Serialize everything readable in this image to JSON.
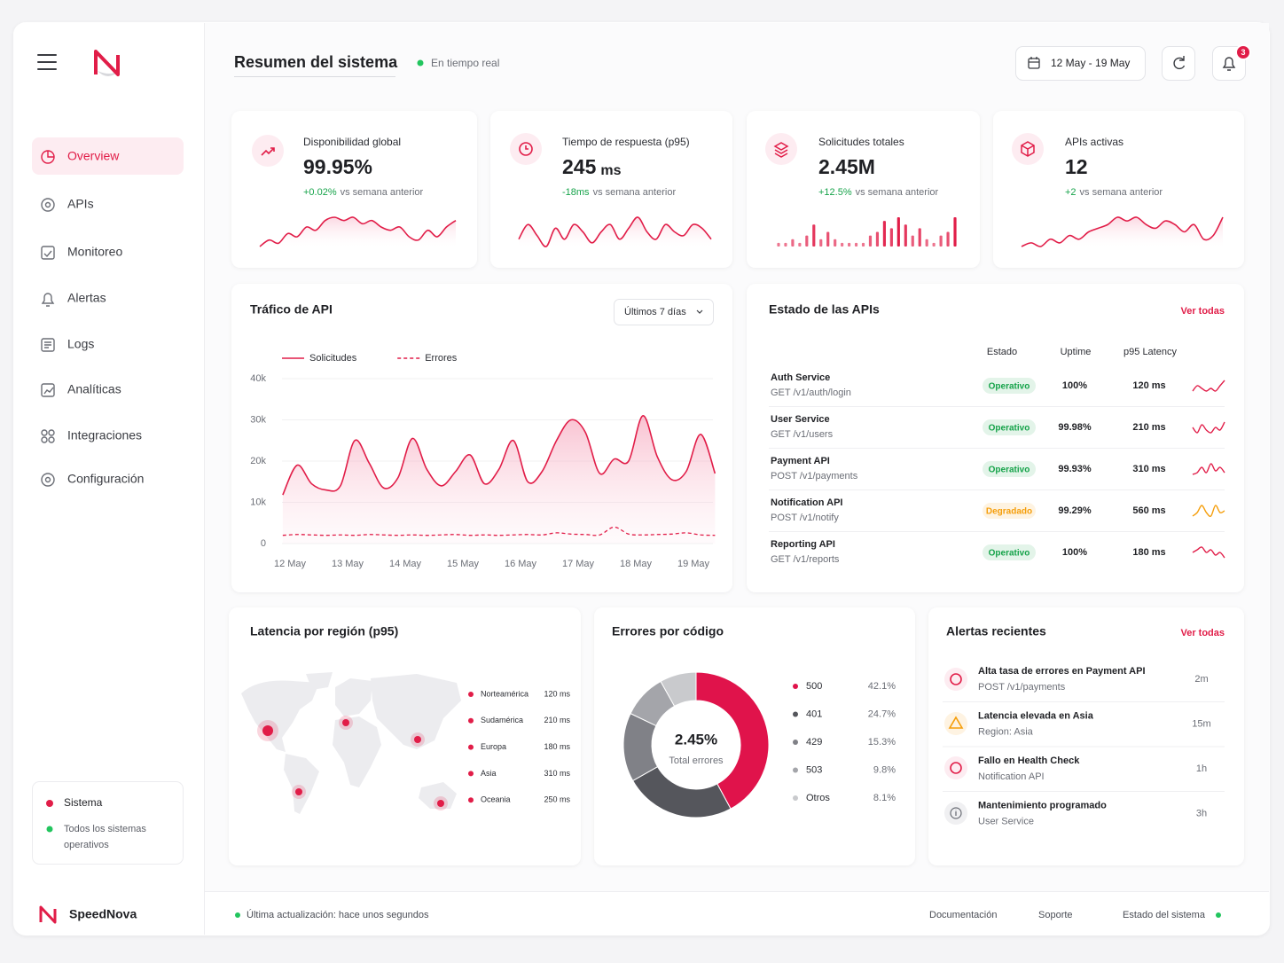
{
  "sidebar": {
    "nav": [
      "Overview",
      "APIs",
      "Monitoreo",
      "Alertas",
      "Logs",
      "Analíticas",
      "Integraciones",
      "Configuración"
    ],
    "status": {
      "title": "Sistema",
      "text": "Todos los sistemas operativos"
    }
  },
  "header": {
    "title": "Resumen del sistema",
    "live": "En tiempo real",
    "date_range": "12 May - 19 May",
    "notifications": 3
  },
  "kpis": [
    {
      "label": "Disponibilidad global",
      "value": "99.95%",
      "change": "+0.02%",
      "note": "vs semana anterior",
      "trend_type": "line",
      "trend": [
        2,
        3,
        2.5,
        4,
        3.5,
        5,
        4.5,
        6,
        6.5,
        6,
        6.5,
        5.5,
        6,
        5,
        4.5,
        5,
        3.5,
        3,
        4.5,
        3.5,
        5,
        6
      ]
    },
    {
      "label": "Tiempo de respuesta (p95)",
      "value": "245",
      "unit": "ms",
      "change": "-18ms",
      "note": "vs semana anterior",
      "trend_type": "line",
      "trend": [
        4,
        6,
        4.5,
        3,
        5.5,
        4,
        6,
        5,
        3.5,
        5,
        6,
        4,
        5.5,
        7,
        5,
        4,
        6,
        5,
        4.5,
        6,
        5.5,
        4
      ]
    },
    {
      "label": "Solicitudes totales",
      "value": "2.45M",
      "change": "+12.5%",
      "note": "vs semana anterior",
      "trend_type": "bar",
      "trend": [
        1,
        1,
        2,
        1,
        3,
        6,
        2,
        4,
        2,
        1,
        1,
        1,
        1,
        3,
        4,
        7,
        5,
        8,
        6,
        3,
        5,
        2,
        1,
        3,
        4,
        8
      ]
    },
    {
      "label": "APIs activas",
      "value": "12",
      "change": "+2",
      "note": "vs semana anterior",
      "trend_type": "line",
      "trend": [
        2,
        2.5,
        2,
        3,
        2.5,
        3.5,
        3,
        4,
        4.5,
        5,
        6,
        5.5,
        6,
        5,
        4.5,
        5.5,
        5,
        4,
        5,
        3,
        3.5,
        6
      ]
    }
  ],
  "traffic_controls": {
    "range": "Últimos 7 días"
  },
  "chart_data": [
    {
      "type": "line",
      "title": "Tráfico de API",
      "x": [
        11.875,
        12.125,
        12.375,
        12.625,
        12.875,
        13.125,
        13.375,
        13.625,
        13.875,
        14.125,
        14.375,
        14.625,
        14.875,
        15.125,
        15.375,
        15.625,
        15.875,
        16.125,
        16.375,
        16.625,
        16.875,
        17.125,
        17.375,
        17.625,
        17.875,
        18.125,
        18.375,
        18.625,
        18.875,
        19.125,
        19.375
      ],
      "xlim": [
        11.75,
        19.5
      ],
      "xticks": [
        {
          "value": 12,
          "label": "12 May"
        },
        {
          "value": 13,
          "label": "13 May"
        },
        {
          "value": 14,
          "label": "14 May"
        },
        {
          "value": 15,
          "label": "15 May"
        },
        {
          "value": 16,
          "label": "16 May"
        },
        {
          "value": 17,
          "label": "17 May"
        },
        {
          "value": 18,
          "label": "18 May"
        },
        {
          "value": 19,
          "label": "19 May"
        }
      ],
      "ylim": [
        0,
        40000
      ],
      "yticks": [
        0,
        {
          "value": 10000,
          "label": "10k"
        },
        {
          "value": 20000,
          "label": "20k"
        },
        {
          "value": 30000,
          "label": "30k"
        },
        {
          "value": 40000,
          "label": "40k"
        }
      ],
      "grid": true,
      "series": [
        {
          "name": "Solicitudes",
          "color": "#e11d48",
          "dashed": false,
          "area": true,
          "values": [
            11800,
            19000,
            14500,
            13000,
            14000,
            25000,
            19500,
            13500,
            16000,
            25500,
            18000,
            14000,
            17500,
            21500,
            14500,
            18000,
            25000,
            15000,
            17500,
            25000,
            30000,
            27000,
            17000,
            20500,
            20000,
            31000,
            21000,
            15500,
            17500,
            26500,
            17000
          ]
        },
        {
          "name": "Errores",
          "color": "#e11d48",
          "dashed": true,
          "area": false,
          "values": [
            2000,
            2200,
            2100,
            2000,
            2100,
            2000,
            2200,
            2100,
            2000,
            2100,
            2000,
            2100,
            2200,
            2000,
            2100,
            2000,
            2100,
            2200,
            2100,
            2600,
            2300,
            2200,
            2100,
            4000,
            2300,
            2100,
            2200,
            2300,
            2600,
            2100,
            2000
          ]
        }
      ]
    },
    {
      "type": "pie",
      "title": "Errores por código",
      "center_value": "2.45%",
      "center_label": "Total errores",
      "categories": [
        "500",
        "401",
        "429",
        "503",
        "Otros"
      ],
      "values": [
        42.1,
        24.7,
        15.3,
        9.8,
        8.1
      ],
      "value_labels": [
        "42.1%",
        "24.7%",
        "15.3%",
        "9.8%",
        "8.1%"
      ],
      "colors": [
        "#e0134b",
        "#55565c",
        "#808187",
        "#a4a5aa",
        "#c9cacd"
      ]
    }
  ],
  "api_status": {
    "title": "Estado de las APIs",
    "link": "Ver todas",
    "columns": [
      "Estado",
      "Uptime",
      "p95 Latency"
    ],
    "rows": [
      {
        "name": "Auth Service",
        "endpoint": "GET /v1/auth/login",
        "status": "Operativo",
        "color": "#16a34a",
        "trend_color": "#e11d48",
        "uptime": "100%",
        "latency": "120 ms",
        "trend": [
          3,
          4,
          3.5,
          3,
          3.5,
          3,
          4,
          5
        ]
      },
      {
        "name": "User Service",
        "endpoint": "GET /v1/users",
        "status": "Operativo",
        "color": "#16a34a",
        "trend_color": "#e11d48",
        "uptime": "99.98%",
        "latency": "210 ms",
        "trend": [
          4,
          3,
          4.5,
          3.5,
          3,
          4,
          3.5,
          5
        ]
      },
      {
        "name": "Payment API",
        "endpoint": "POST /v1/payments",
        "status": "Operativo",
        "color": "#16a34a",
        "trend_color": "#e11d48",
        "uptime": "99.93%",
        "latency": "310 ms",
        "trend": [
          3,
          3.5,
          5,
          3.5,
          6,
          4,
          5,
          3.5
        ]
      },
      {
        "name": "Notification API",
        "endpoint": "POST /v1/notify",
        "status": "Degradado",
        "color": "#f59e0b",
        "trend_color": "#f59e0b",
        "uptime": "99.29%",
        "latency": "560 ms",
        "trend": [
          3,
          4,
          6,
          4,
          3,
          6,
          4,
          4.5
        ]
      },
      {
        "name": "Reporting API",
        "endpoint": "GET /v1/reports",
        "status": "Operativo",
        "color": "#16a34a",
        "trend_color": "#e11d48",
        "uptime": "100%",
        "latency": "180 ms",
        "trend": [
          4,
          4.5,
          5,
          4,
          4.5,
          3.5,
          4,
          3
        ]
      }
    ]
  },
  "latency": {
    "title": "Latencia por región (p95)",
    "regions": [
      {
        "name": "Norteamérica",
        "value": "120 ms"
      },
      {
        "name": "Sudamérica",
        "value": "210 ms"
      },
      {
        "name": "Europa",
        "value": "180 ms"
      },
      {
        "name": "Asia",
        "value": "310 ms"
      },
      {
        "name": "Oceania",
        "value": "250 ms"
      }
    ]
  },
  "alerts": {
    "title": "Alertas recientes",
    "link": "Ver todas",
    "items": [
      {
        "title": "Alta tasa de errores en Payment API",
        "detail": "POST /v1/payments",
        "time": "2m"
      },
      {
        "title": "Latencia elevada en Asia",
        "detail": "Region: Asia",
        "time": "15m"
      },
      {
        "title": "Fallo en Health Check",
        "detail": "Notification API",
        "time": "1h"
      },
      {
        "title": "Mantenimiento programado",
        "detail": "User Service",
        "time": "3h"
      }
    ]
  },
  "footer": {
    "brand": "SpeedNova",
    "updated": "Última actualización: hace unos segundos",
    "links": [
      "Documentación",
      "Soporte",
      "Estado del sistema"
    ]
  }
}
